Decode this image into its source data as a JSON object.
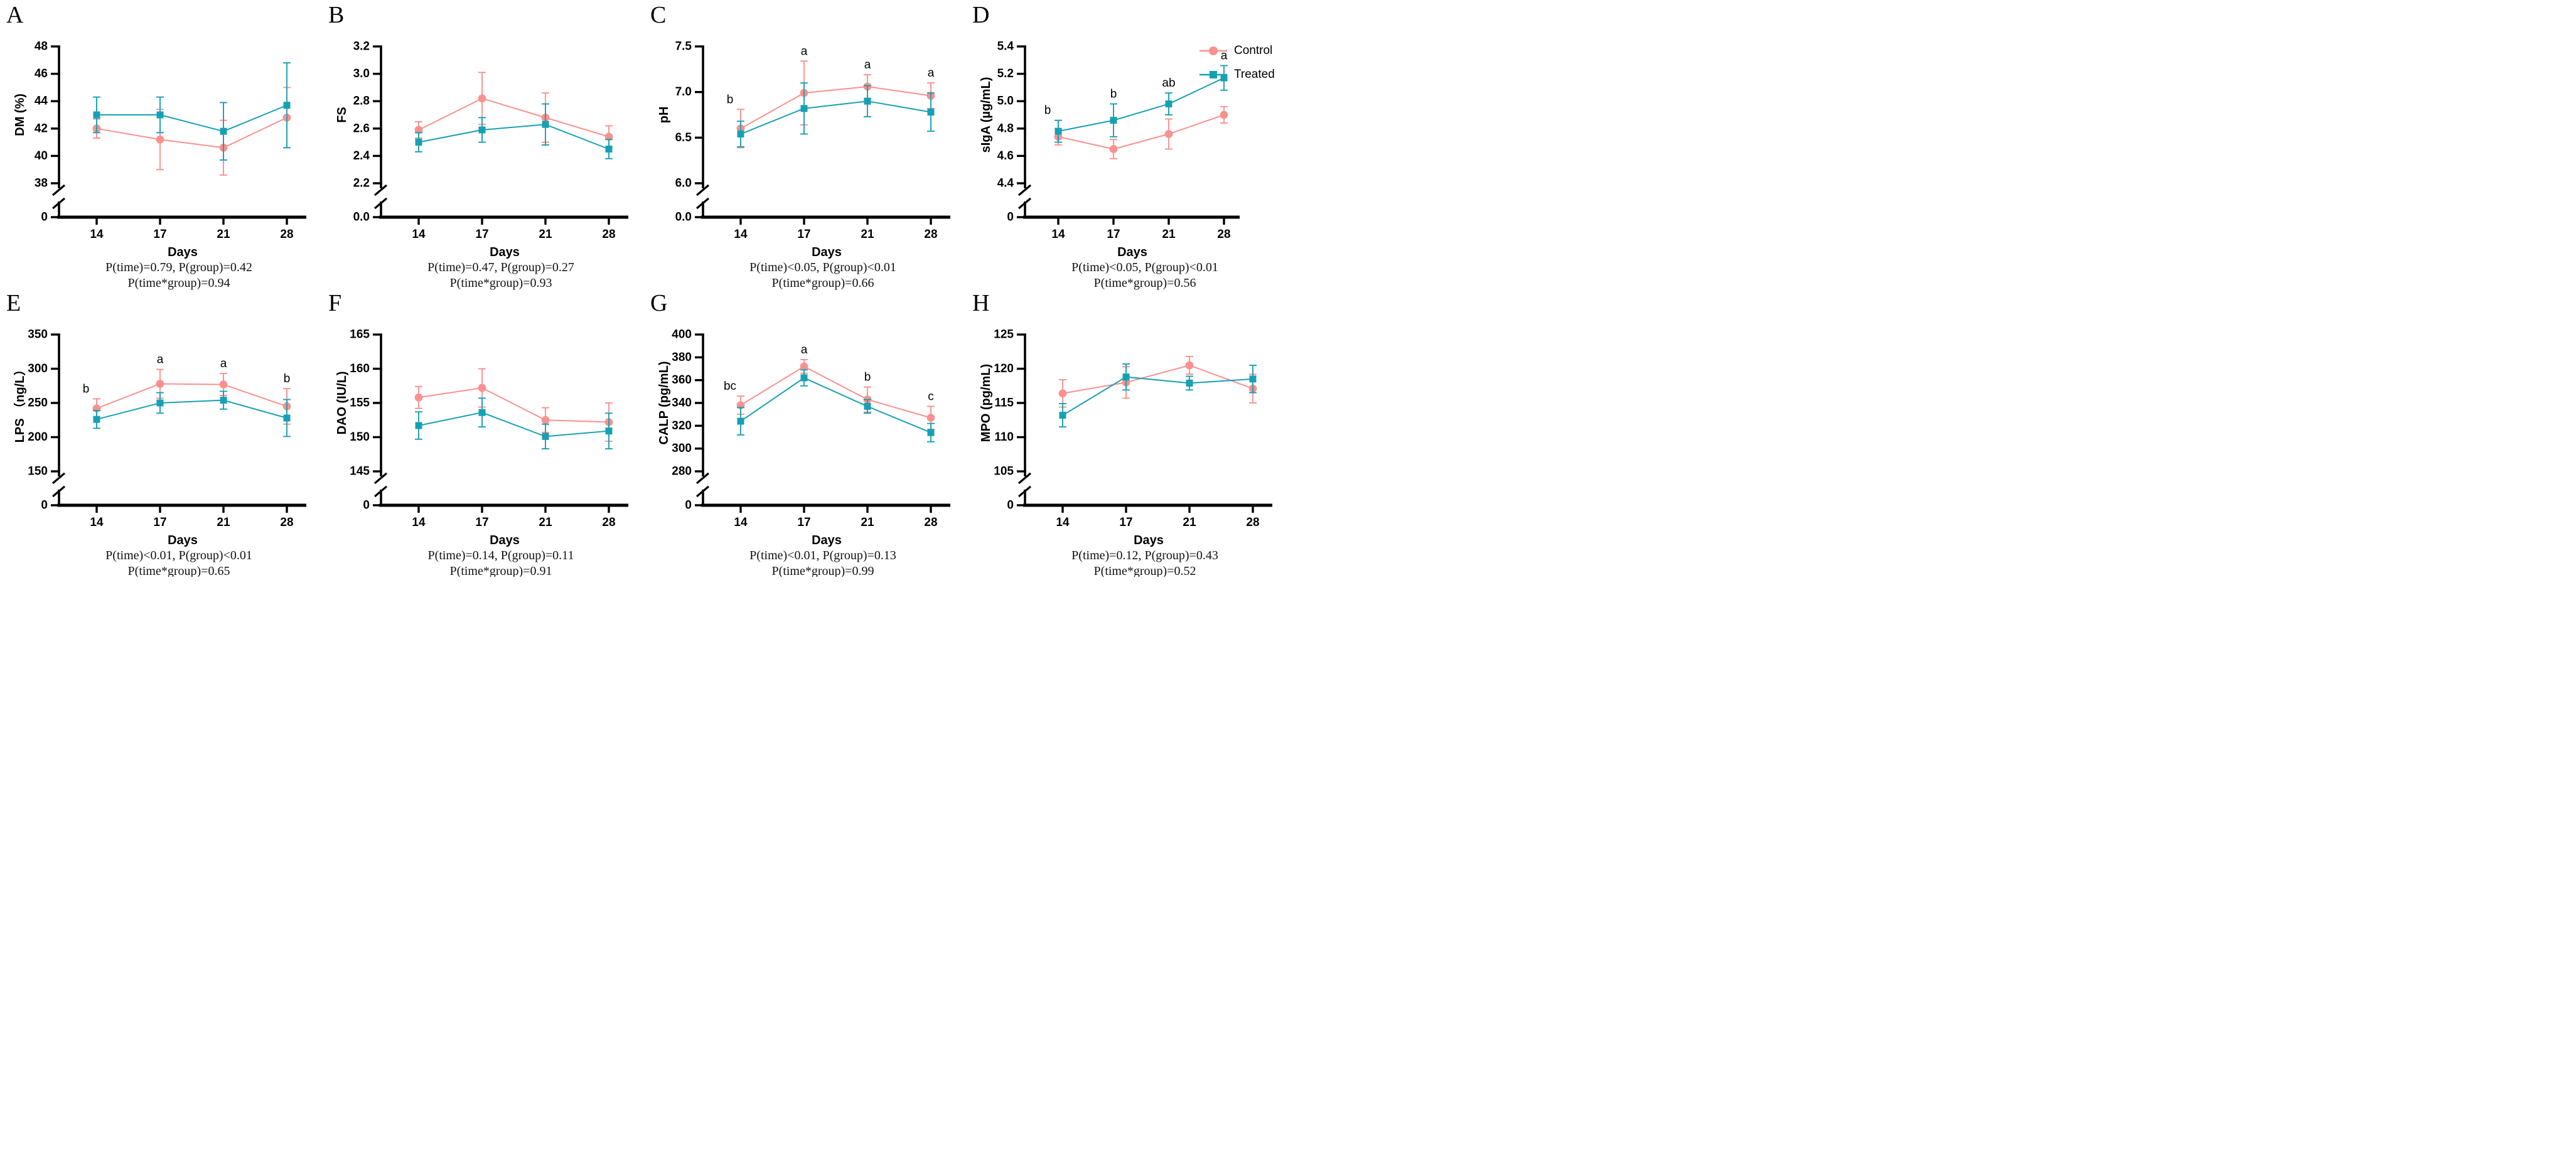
{
  "legend": {
    "items": [
      {
        "label": "Control",
        "color": "#F9918E",
        "marker": "circle"
      },
      {
        "label": "Treated",
        "color": "#17A0B4",
        "marker": "square"
      }
    ]
  },
  "chart_data": [
    {
      "panel_letter": "A",
      "type": "line",
      "xlabel": "Days",
      "ylabel": "DM (%)",
      "x_categories": [
        "14",
        "17",
        "21",
        "28"
      ],
      "axis_break": true,
      "zero_label": "0",
      "ytick_values": [
        38,
        40,
        42,
        44,
        46,
        48
      ],
      "ytick_labels": [
        "38",
        "40",
        "42",
        "44",
        "46",
        "48"
      ],
      "ylim": [
        38,
        48
      ],
      "series": [
        {
          "name": "Control",
          "marker": "circle",
          "color": "#F9918E",
          "values": [
            42.0,
            41.2,
            40.6,
            42.8
          ],
          "errors": [
            0.7,
            2.2,
            2.0,
            2.2
          ]
        },
        {
          "name": "Treated",
          "marker": "square",
          "color": "#17A0B4",
          "values": [
            43.0,
            43.0,
            41.8,
            43.7
          ],
          "errors": [
            1.3,
            1.3,
            2.1,
            3.1
          ]
        }
      ],
      "sig_letters": [
        "",
        "",
        "",
        ""
      ],
      "p_line1": "P(time)=0.79, P(group)=0.42",
      "p_line2": "P(time*group)=0.94"
    },
    {
      "panel_letter": "B",
      "type": "line",
      "xlabel": "Days",
      "ylabel": "FS",
      "x_categories": [
        "14",
        "17",
        "21",
        "28"
      ],
      "axis_break": true,
      "zero_label": "0.0",
      "ytick_values": [
        2.2,
        2.4,
        2.6,
        2.8,
        3.0,
        3.2
      ],
      "ytick_labels": [
        "2.2",
        "2.4",
        "2.6",
        "2.8",
        "3.0",
        "3.2"
      ],
      "ylim": [
        2.2,
        3.2
      ],
      "series": [
        {
          "name": "Control",
          "marker": "circle",
          "color": "#F9918E",
          "values": [
            2.59,
            2.82,
            2.68,
            2.54
          ],
          "errors": [
            0.06,
            0.19,
            0.18,
            0.08
          ]
        },
        {
          "name": "Treated",
          "marker": "square",
          "color": "#17A0B4",
          "values": [
            2.5,
            2.59,
            2.63,
            2.45
          ],
          "errors": [
            0.07,
            0.09,
            0.15,
            0.07
          ]
        }
      ],
      "sig_letters": [
        "",
        "",
        "",
        ""
      ],
      "p_line1": "P(time)=0.47, P(group)=0.27",
      "p_line2": "P(time*group)=0.93"
    },
    {
      "panel_letter": "C",
      "type": "line",
      "xlabel": "Days",
      "ylabel": "pH",
      "x_categories": [
        "14",
        "17",
        "21",
        "28"
      ],
      "axis_break": true,
      "zero_label": "0.0",
      "ytick_values": [
        6.0,
        6.5,
        7.0,
        7.5
      ],
      "ytick_labels": [
        "6.0",
        "6.5",
        "7.0",
        "7.5"
      ],
      "ylim": [
        6.0,
        7.5
      ],
      "series": [
        {
          "name": "Control",
          "marker": "circle",
          "color": "#F9918E",
          "values": [
            6.6,
            6.99,
            7.06,
            6.96
          ],
          "errors": [
            0.21,
            0.35,
            0.13,
            0.14
          ]
        },
        {
          "name": "Treated",
          "marker": "square",
          "color": "#17A0B4",
          "values": [
            6.54,
            6.82,
            6.9,
            6.78
          ],
          "errors": [
            0.14,
            0.28,
            0.17,
            0.21
          ]
        }
      ],
      "sig_letters": [
        "b",
        "a",
        "a",
        "a"
      ],
      "p_line1": "P(time)<0.05, P(group)<0.01",
      "p_line2": "P(time*group)=0.66"
    },
    {
      "panel_letter": "D",
      "type": "line",
      "xlabel": "Days",
      "ylabel": "sIgA (µg/mL)",
      "x_categories": [
        "14",
        "17",
        "21",
        "28"
      ],
      "axis_break": true,
      "zero_label": "0",
      "ytick_values": [
        4.4,
        4.6,
        4.8,
        5.0,
        5.2,
        5.4
      ],
      "ytick_labels": [
        "4.4",
        "4.6",
        "4.8",
        "5.0",
        "5.2",
        "5.4"
      ],
      "ylim": [
        4.4,
        5.4
      ],
      "series": [
        {
          "name": "Control",
          "marker": "circle",
          "color": "#F9918E",
          "values": [
            4.74,
            4.65,
            4.76,
            4.9
          ],
          "errors": [
            0.06,
            0.07,
            0.11,
            0.06
          ]
        },
        {
          "name": "Treated",
          "marker": "square",
          "color": "#17A0B4",
          "values": [
            4.78,
            4.86,
            4.98,
            5.17
          ],
          "errors": [
            0.08,
            0.12,
            0.08,
            0.09
          ]
        }
      ],
      "sig_letters": [
        "b",
        "b",
        "ab",
        "a"
      ],
      "p_line1": "P(time)<0.05, P(group)<0.01",
      "p_line2": "P(time*group)=0.56"
    },
    {
      "panel_letter": "E",
      "type": "line",
      "xlabel": "Days",
      "ylabel": "LPS （ng/L）",
      "x_categories": [
        "14",
        "17",
        "21",
        "28"
      ],
      "axis_break": true,
      "zero_label": "0",
      "ytick_values": [
        150,
        200,
        250,
        300,
        350
      ],
      "ytick_labels": [
        "150",
        "200",
        "250",
        "300",
        "350"
      ],
      "ylim": [
        150,
        350
      ],
      "series": [
        {
          "name": "Control",
          "marker": "circle",
          "color": "#F9918E",
          "values": [
            242,
            278,
            277,
            245
          ],
          "errors": [
            14,
            21,
            16,
            26
          ]
        },
        {
          "name": "Treated",
          "marker": "square",
          "color": "#17A0B4",
          "values": [
            226,
            250,
            254,
            228
          ],
          "errors": [
            13,
            15,
            13,
            27
          ]
        }
      ],
      "sig_letters": [
        "b",
        "a",
        "a",
        "b"
      ],
      "p_line1": "P(time)<0.01, P(group)<0.01",
      "p_line2": "P(time*group)=0.65"
    },
    {
      "panel_letter": "F",
      "type": "line",
      "xlabel": "Days",
      "ylabel": "DAO (IU/L)",
      "x_categories": [
        "14",
        "17",
        "21",
        "28"
      ],
      "axis_break": true,
      "zero_label": "0",
      "ytick_values": [
        145,
        150,
        155,
        160,
        165
      ],
      "ytick_labels": [
        "145",
        "150",
        "155",
        "160",
        "165"
      ],
      "ylim": [
        145,
        165
      ],
      "series": [
        {
          "name": "Control",
          "marker": "circle",
          "color": "#F9918E",
          "values": [
            155.8,
            157.2,
            152.5,
            152.2
          ],
          "errors": [
            1.6,
            2.8,
            1.8,
            2.8
          ]
        },
        {
          "name": "Treated",
          "marker": "square",
          "color": "#17A0B4",
          "values": [
            151.7,
            153.6,
            150.1,
            150.9
          ],
          "errors": [
            2.0,
            2.1,
            1.8,
            2.6
          ]
        }
      ],
      "sig_letters": [
        "",
        "",
        "",
        ""
      ],
      "p_line1": "P(time)=0.14, P(group)=0.11",
      "p_line2": "P(time*group)=0.91"
    },
    {
      "panel_letter": "G",
      "type": "line",
      "xlabel": "Days",
      "ylabel": "CALP (pg/mL)",
      "x_categories": [
        "14",
        "17",
        "21",
        "28"
      ],
      "axis_break": true,
      "zero_label": "0",
      "ytick_values": [
        280,
        300,
        320,
        340,
        360,
        380,
        400
      ],
      "ytick_labels": [
        "280",
        "300",
        "320",
        "340",
        "360",
        "380",
        "400"
      ],
      "ylim": [
        280,
        400
      ],
      "series": [
        {
          "name": "Control",
          "marker": "circle",
          "color": "#F9918E",
          "values": [
            338,
            372,
            343,
            327
          ],
          "errors": [
            8,
            6,
            11,
            10
          ]
        },
        {
          "name": "Treated",
          "marker": "square",
          "color": "#17A0B4",
          "values": [
            324,
            362,
            337,
            314
          ],
          "errors": [
            12,
            7,
            6,
            8
          ]
        }
      ],
      "sig_letters": [
        "bc",
        "a",
        "b",
        "c"
      ],
      "p_line1": "P(time)<0.01, P(group)=0.13",
      "p_line2": "P(time*group)=0.99"
    },
    {
      "panel_letter": "H",
      "type": "line",
      "xlabel": "Days",
      "ylabel": "MPO (pg/mL)",
      "x_categories": [
        "14",
        "17",
        "21",
        "28"
      ],
      "axis_break": true,
      "zero_label": "0",
      "ytick_values": [
        105,
        110,
        115,
        120,
        125
      ],
      "ytick_labels": [
        "105",
        "110",
        "115",
        "120",
        "125"
      ],
      "ylim": [
        105,
        125
      ],
      "series": [
        {
          "name": "Control",
          "marker": "circle",
          "color": "#F9918E",
          "values": [
            116.4,
            118.0,
            120.5,
            117.1
          ],
          "errors": [
            2.0,
            2.3,
            1.3,
            2.1
          ]
        },
        {
          "name": "Treated",
          "marker": "square",
          "color": "#17A0B4",
          "values": [
            113.2,
            118.8,
            117.9,
            118.5
          ],
          "errors": [
            1.7,
            1.9,
            1.0,
            2.0
          ]
        }
      ],
      "sig_letters": [
        "",
        "",
        "",
        ""
      ],
      "p_line1": "P(time)=0.12, P(group)=0.43",
      "p_line2": "P(time*group)=0.52"
    }
  ]
}
